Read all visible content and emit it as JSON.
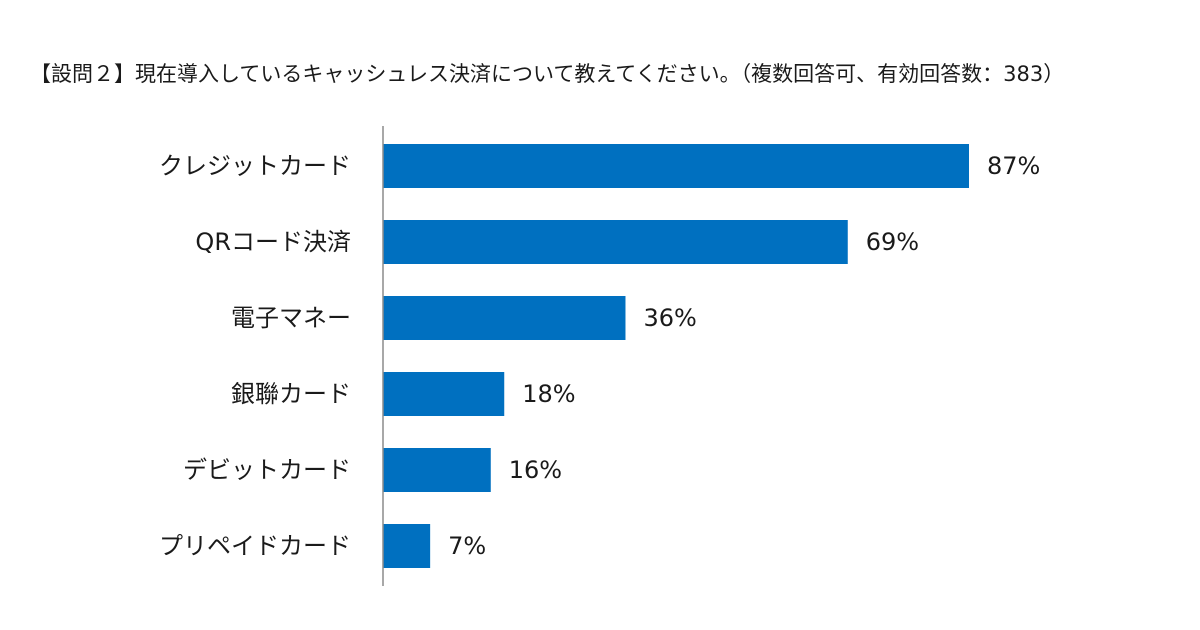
{
  "chart_data": {
    "type": "bar",
    "orientation": "horizontal",
    "title": "【設問２】現在導入しているキャッシュレス決済について教えてください。（複数回答可、有効回答数：383）",
    "categories": [
      "クレジットカード",
      "QRコード決済",
      "電子マネー",
      "銀聯カード",
      "デビットカード",
      "プリペイドカード"
    ],
    "values": [
      87,
      69,
      36,
      18,
      16,
      7
    ],
    "value_labels": [
      "87%",
      "69%",
      "36%",
      "18%",
      "16%",
      "7%"
    ],
    "unit": "%",
    "xlim": [
      0,
      100
    ],
    "grid": false,
    "legend": "none",
    "colors": {
      "bar": "#0070C0",
      "axis": "#8c8c8c",
      "text": "#1a1a1a"
    }
  }
}
